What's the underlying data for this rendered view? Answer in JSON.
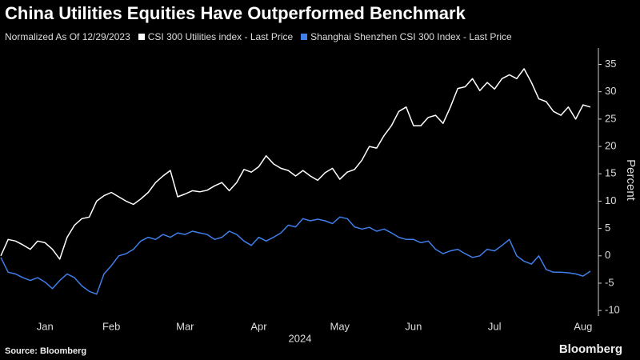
{
  "chart_data": {
    "type": "line",
    "title": "China Utilities Equities Have Outperformed Benchmark",
    "subtitle": "Normalized As Of 12/29/2023",
    "y_label": "Percent",
    "x_label": "2024",
    "source": "Source: Bloomberg",
    "brand": "Bloomberg",
    "categories": [
      null,
      null,
      null,
      null,
      null,
      null,
      "Jan",
      null,
      null,
      null,
      null,
      null,
      null,
      null,
      null,
      "Feb",
      null,
      null,
      null,
      null,
      null,
      null,
      null,
      null,
      null,
      "Mar",
      null,
      null,
      null,
      null,
      null,
      null,
      null,
      null,
      null,
      "Apr",
      null,
      null,
      null,
      null,
      null,
      null,
      null,
      null,
      null,
      null,
      "May",
      null,
      null,
      null,
      null,
      null,
      null,
      null,
      null,
      null,
      "Jun",
      null,
      null,
      null,
      null,
      null,
      null,
      null,
      null,
      null,
      null,
      "Jul",
      null,
      null,
      null,
      null,
      null,
      null,
      null,
      null,
      null,
      null,
      null,
      "Aug",
      null
    ],
    "series": [
      {
        "name": "CSI 300 Utilities index - Last Price",
        "color": "#ffffff",
        "values": [
          0,
          3,
          2.7,
          2,
          1.2,
          2.7,
          2.4,
          1.2,
          -0.6,
          3.4,
          5.6,
          6.8,
          7.1,
          10,
          11,
          11.6,
          10.8,
          10,
          9.4,
          10.4,
          11.6,
          13.4,
          14.6,
          15.6,
          10.8,
          11.3,
          11.9,
          11.7,
          12,
          12.8,
          13.4,
          11.9,
          13.4,
          15.8,
          15.3,
          16.3,
          18.3,
          16.8,
          16,
          15.6,
          14.6,
          15.6,
          14.6,
          13.8,
          15.2,
          16,
          14,
          15.3,
          15.8,
          17.5,
          20,
          19.7,
          22,
          23.8,
          26.4,
          27.2,
          23.8,
          23.8,
          25.3,
          25.7,
          24.2,
          27.2,
          30.6,
          30.9,
          32.4,
          30.2,
          31.7,
          30.5,
          32.4,
          33.1,
          32.4,
          34.2,
          31.7,
          28.7,
          28.2,
          26.4,
          25.7,
          27.2,
          25,
          27.6,
          27.2
        ]
      },
      {
        "name": "Shanghai Shenzhen CSI 300 Index - Last Price",
        "color": "#3f7ee8",
        "values": [
          -0.3,
          -3,
          -3.3,
          -4,
          -4.5,
          -4,
          -4.8,
          -6,
          -4.5,
          -3.3,
          -4,
          -5.5,
          -6.5,
          -7,
          -3.3,
          -1.8,
          0,
          0.4,
          1.2,
          2.7,
          3.4,
          3,
          3.9,
          3.4,
          4.2,
          3.9,
          4.5,
          4.2,
          3.9,
          3,
          3.4,
          4.5,
          3.9,
          2.7,
          1.9,
          3.4,
          2.7,
          3.4,
          4.2,
          5.6,
          5.3,
          6.8,
          6.4,
          6.7,
          6.4,
          5.9,
          7.1,
          6.8,
          5.3,
          4.9,
          5.2,
          4.5,
          4.9,
          4.2,
          3.4,
          3,
          3,
          2.4,
          2.7,
          1.2,
          0.4,
          0.9,
          1.2,
          0.4,
          -0.3,
          0,
          1.2,
          0.9,
          1.9,
          3,
          0,
          -1,
          -1.5,
          0,
          -2.5,
          -3,
          -3,
          -3.1,
          -3.3,
          -3.7,
          -2.8
        ]
      }
    ],
    "ylim": [
      -11,
      38
    ],
    "yticks": [
      -10,
      -5,
      0,
      5,
      10,
      15,
      20,
      25,
      30,
      35
    ],
    "grid": false
  }
}
